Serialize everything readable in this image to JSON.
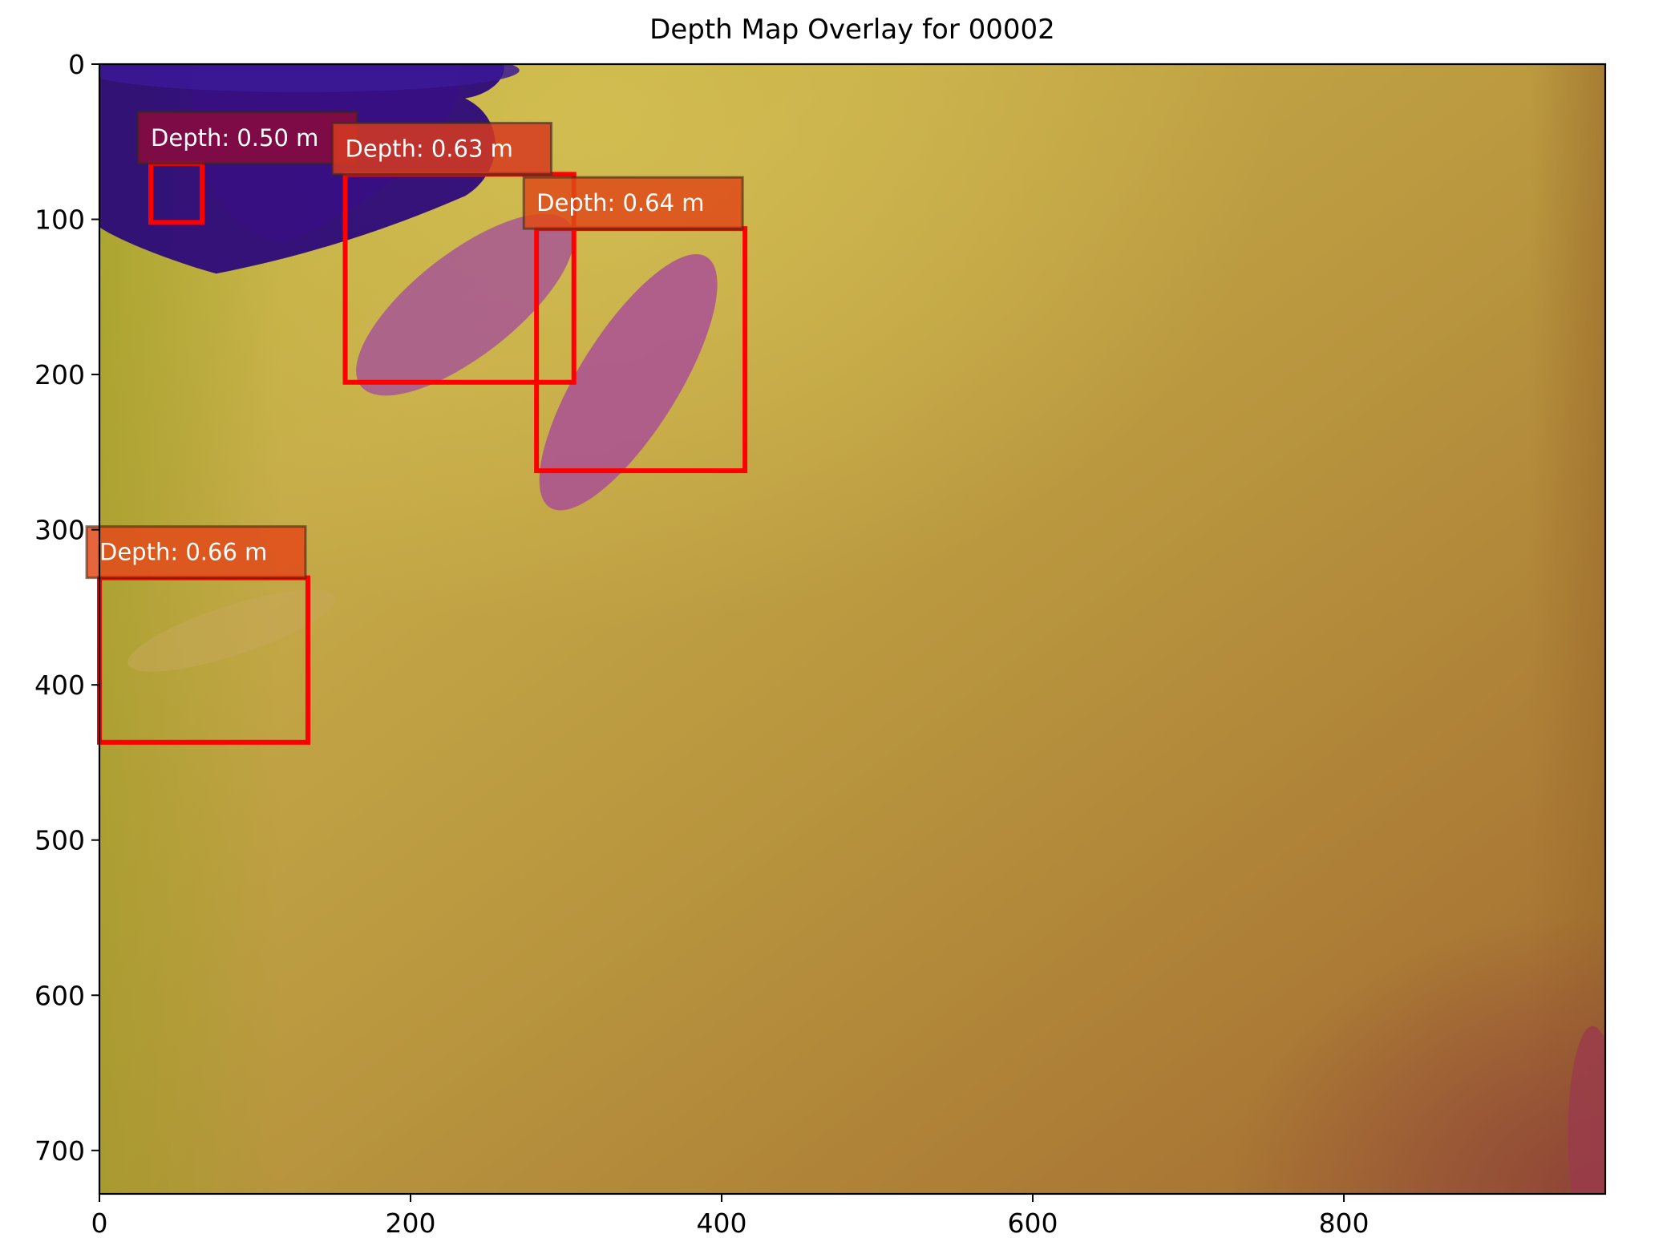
{
  "figure": {
    "title": "Depth Map Overlay for 00002"
  },
  "chart_data": {
    "type": "image",
    "title": "Depth Map Overlay for 00002",
    "xlim": [
      0,
      968
    ],
    "ylim": [
      728,
      0
    ],
    "x_ticks": [
      0,
      200,
      400,
      600,
      800
    ],
    "y_ticks": [
      0,
      100,
      200,
      300,
      400,
      500,
      600,
      700
    ],
    "x_tick_labels": [
      "0",
      "200",
      "400",
      "600",
      "800"
    ],
    "y_tick_labels": [
      "0",
      "100",
      "200",
      "300",
      "400",
      "500",
      "600",
      "700"
    ],
    "grid": false,
    "colors": {
      "box": "#ff0000",
      "label_text": "#ffffff",
      "depth_far": "#a8742f",
      "depth_mid": "#c8b04a",
      "depth_near": "#2a0a78"
    },
    "detections": [
      {
        "x1": 33,
        "y1": 64,
        "x2": 66,
        "y2": 102,
        "depth_m": 0.5,
        "label": "Depth: 0.50 m",
        "label_color": "#8b0a3c"
      },
      {
        "x1": 158,
        "y1": 71,
        "x2": 305,
        "y2": 205,
        "depth_m": 0.63,
        "label": "Depth: 0.63 m",
        "label_color": "#d63a1e"
      },
      {
        "x1": 281,
        "y1": 106,
        "x2": 415,
        "y2": 262,
        "depth_m": 0.64,
        "label": "Depth: 0.64 m",
        "label_color": "#de4a18"
      },
      {
        "x1": 0,
        "y1": 331,
        "x2": 134,
        "y2": 437,
        "depth_m": 0.66,
        "label": "Depth: 0.66 m",
        "label_color": "#e24a1a"
      }
    ]
  }
}
